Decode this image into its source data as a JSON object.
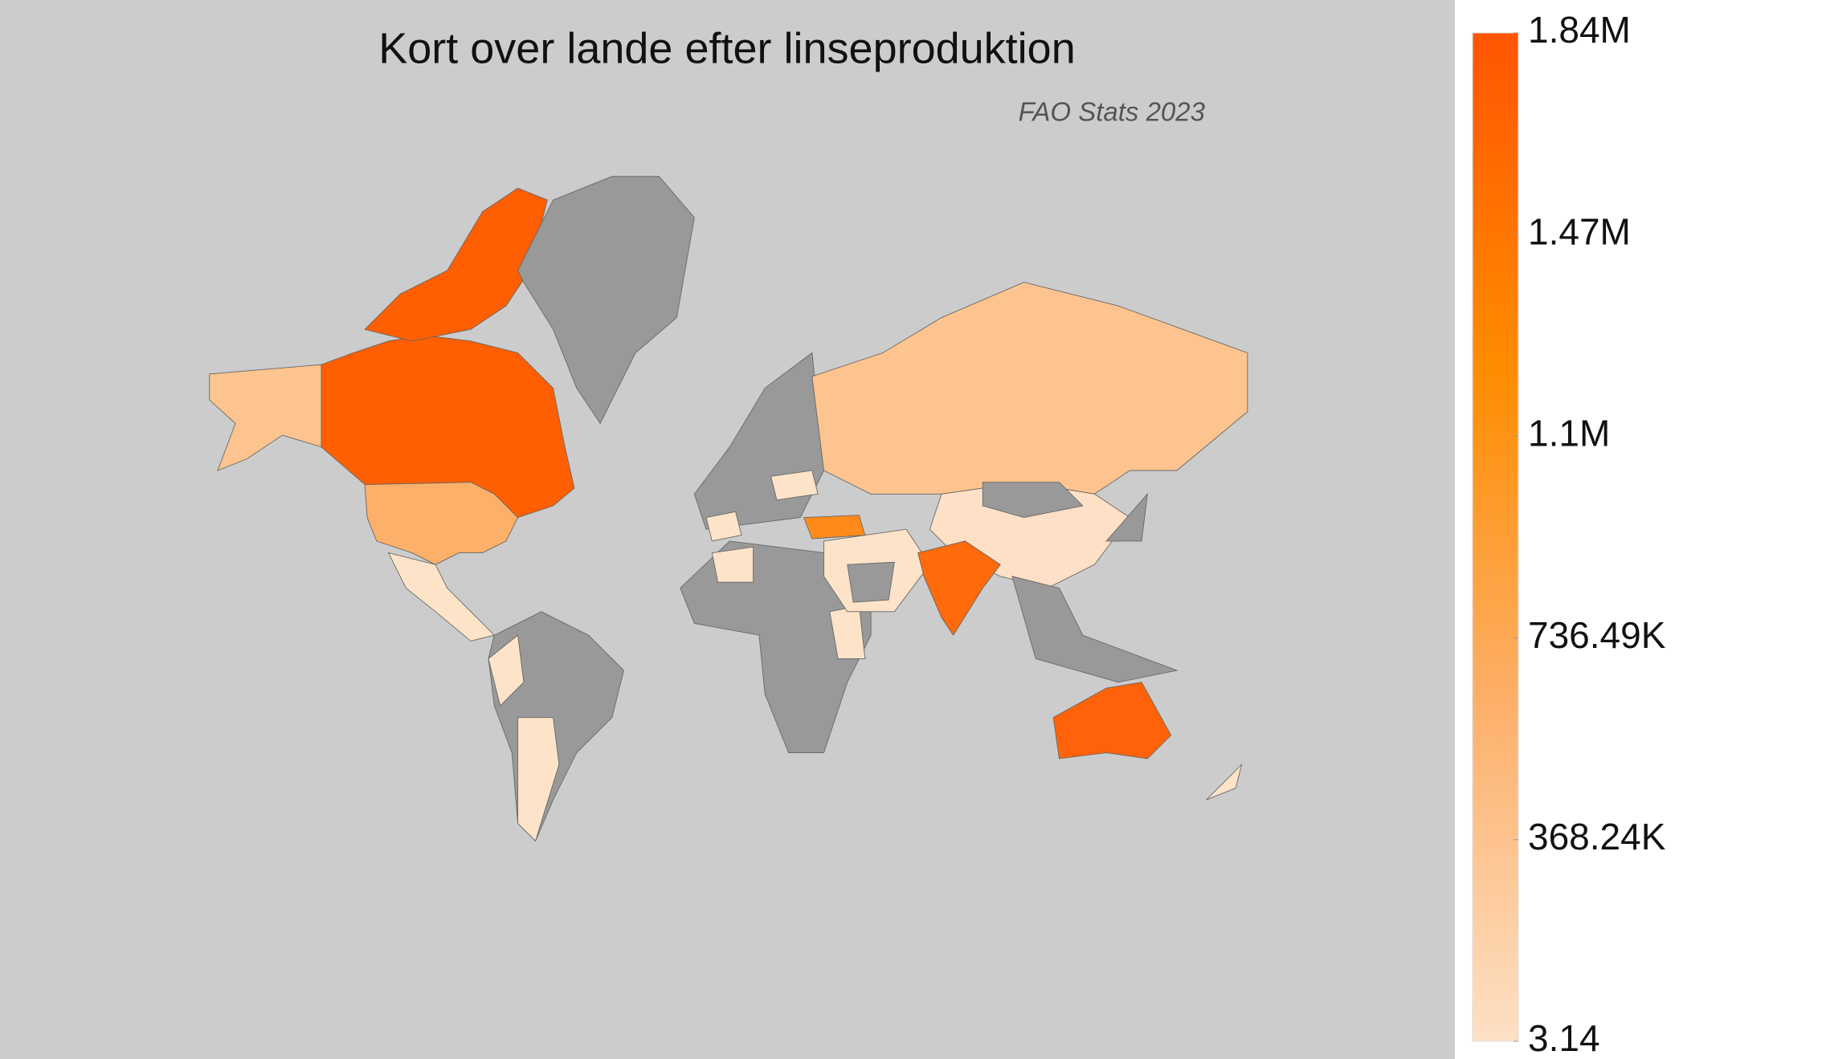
{
  "chart_data": {
    "type": "choropleth",
    "title": "Kort over lande efter linseproduktion",
    "subtitle": "FAO Stats 2023",
    "colorscale": [
      "#fde0c5",
      "#fdb06a",
      "#ff8c00",
      "#ff5500"
    ],
    "clim": [
      3.14,
      1841210.6
    ],
    "cticks": [
      {
        "value": 3.14,
        "label": "3.14"
      },
      {
        "value": 368244.6,
        "label": "368.24K"
      },
      {
        "value": 736486,
        "label": "736.49K"
      },
      {
        "value": 1104727.6,
        "label": "1.1M"
      },
      {
        "value": 1472969,
        "label": "1.47M"
      },
      {
        "value": 1841210.6,
        "label": "1.84M"
      }
    ]
  }
}
